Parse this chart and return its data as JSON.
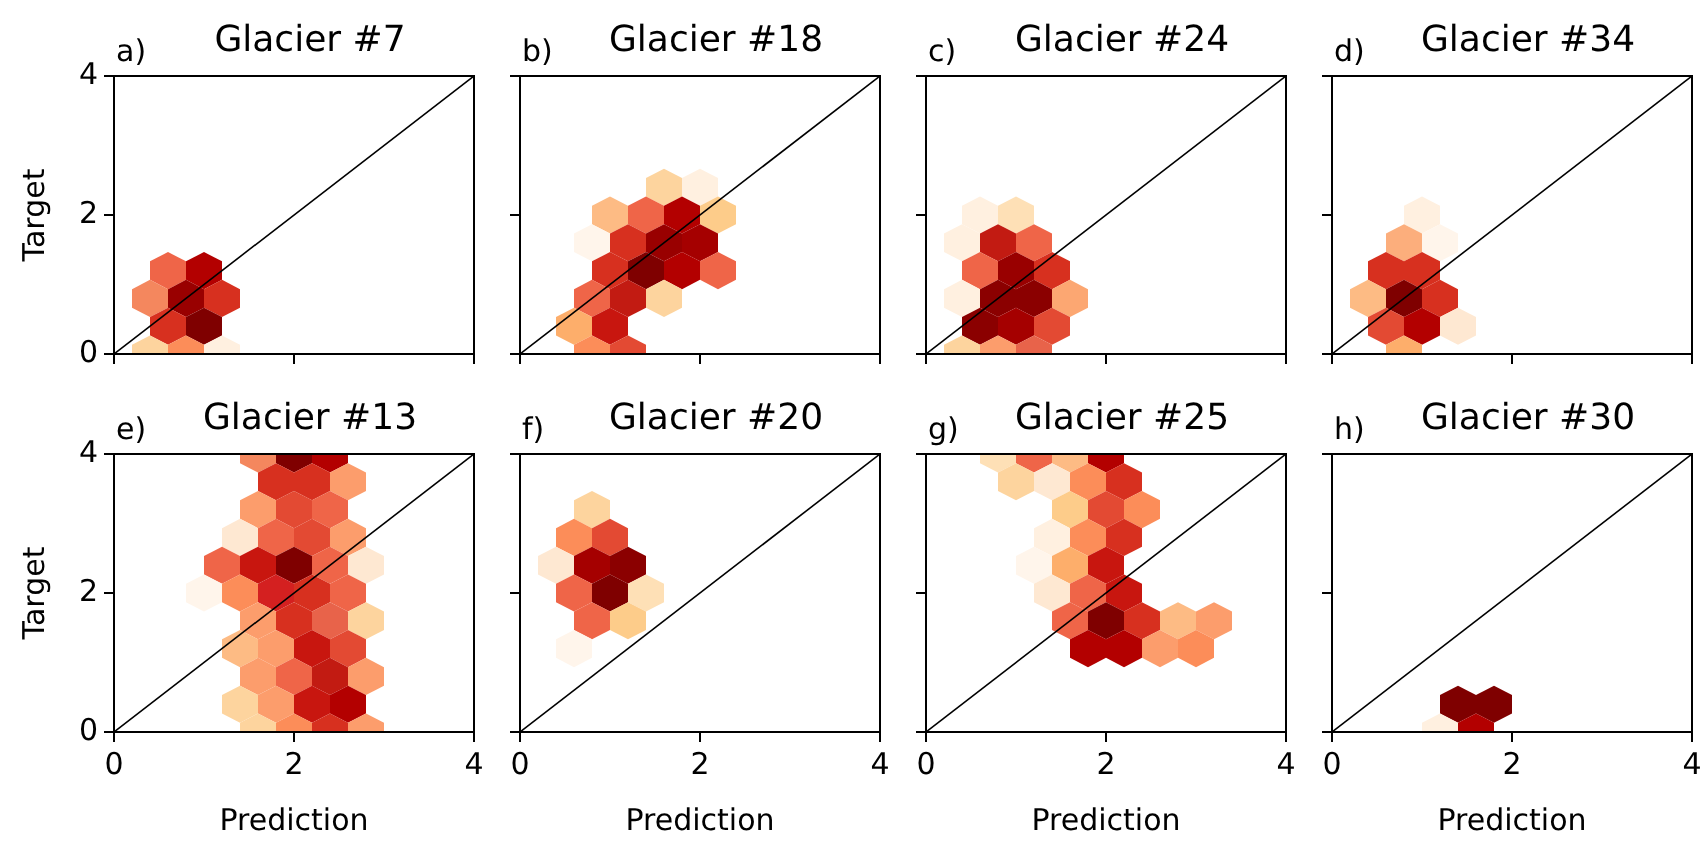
{
  "chart_data": [
    {
      "type": "scatter",
      "title": "Glacier #7",
      "annotations": [
        "a)"
      ],
      "ylabel": "Target",
      "xlim": [
        0,
        4
      ],
      "ylim": [
        0,
        4
      ],
      "xticks": [
        0,
        2,
        4
      ],
      "yticks": [
        0,
        2,
        4
      ],
      "tick_labels": "y",
      "series": [
        {
          "x": [
            0.6,
            1.0,
            0.4,
            0.8,
            1.2,
            0.6,
            1.0,
            0.4,
            0.8,
            1.2
          ],
          "values": [
            1.2,
            1.2,
            0.8,
            0.8,
            0.8,
            0.4,
            0.4,
            0,
            0,
            0
          ],
          "colors": [
            "#ef6548",
            "#b30000",
            "#f4875e",
            "#990000",
            "#d7301f",
            "#d7301f",
            "#7f0000",
            "#fdd49e",
            "#fc8d59",
            "#fff0e0"
          ]
        },
        {
          "type": "line",
          "x": [
            0,
            4
          ],
          "values": [
            0,
            4
          ],
          "color": "#000000"
        }
      ]
    },
    {
      "type": "scatter",
      "title": "Glacier #18",
      "annotations": [
        "b)"
      ],
      "xlim": [
        0,
        4
      ],
      "ylim": [
        0,
        4
      ],
      "xticks": [
        0,
        2,
        4
      ],
      "yticks": [
        0,
        2,
        4
      ],
      "tick_labels": false,
      "series": [
        {
          "x": [
            1.6,
            2.0,
            1.0,
            1.4,
            1.8,
            2.2,
            0.8,
            1.2,
            1.6,
            2.0,
            1.0,
            1.4,
            1.8,
            2.2,
            0.8,
            1.2,
            1.6,
            0.6,
            1.0,
            0.8,
            1.2
          ],
          "values": [
            2.4,
            2.4,
            2.0,
            2.0,
            2.0,
            2.0,
            1.6,
            1.6,
            1.6,
            1.6,
            1.2,
            1.2,
            1.2,
            1.2,
            0.8,
            0.8,
            0.8,
            0.4,
            0.4,
            0,
            0
          ],
          "colors": [
            "#fdd49e",
            "#fff0e0",
            "#fdbb84",
            "#ef6548",
            "#b30000",
            "#fdcc8a",
            "#fff5eb",
            "#d7301f",
            "#990000",
            "#a50000",
            "#d7301f",
            "#7f0000",
            "#b30000",
            "#ef6548",
            "#ef6548",
            "#c21b12",
            "#fdd49e",
            "#fdae6b",
            "#c8160f",
            "#fc8d59",
            "#e34a33"
          ]
        },
        {
          "type": "line",
          "x": [
            0,
            4
          ],
          "values": [
            0,
            4
          ],
          "color": "#000000"
        }
      ]
    },
    {
      "type": "scatter",
      "title": "Glacier #24",
      "annotations": [
        "c)"
      ],
      "xlim": [
        0,
        4
      ],
      "ylim": [
        0,
        4
      ],
      "xticks": [
        0,
        2,
        4
      ],
      "yticks": [
        0,
        2,
        4
      ],
      "tick_labels": false,
      "series": [
        {
          "x": [
            0.6,
            1.0,
            0.4,
            0.8,
            1.2,
            0.6,
            1.0,
            1.4,
            0.4,
            0.8,
            1.2,
            1.6,
            0.6,
            1.0,
            1.4,
            0.4,
            0.8,
            1.2
          ],
          "values": [
            2.0,
            2.0,
            1.6,
            1.6,
            1.6,
            1.2,
            1.2,
            1.2,
            0.8,
            0.8,
            0.8,
            0.8,
            0.4,
            0.4,
            0.4,
            0,
            0,
            0
          ],
          "colors": [
            "#fff0e0",
            "#fee0b6",
            "#fff0e0",
            "#c21b12",
            "#ef6548",
            "#ef6548",
            "#990000",
            "#d7301f",
            "#fff0e0",
            "#8b0000",
            "#8b0000",
            "#fca772",
            "#8b0000",
            "#a50000",
            "#e34a33",
            "#fdd49e",
            "#fc9d6c",
            "#e8634a"
          ]
        },
        {
          "type": "line",
          "x": [
            0,
            4
          ],
          "values": [
            0,
            4
          ],
          "color": "#000000"
        }
      ]
    },
    {
      "type": "scatter",
      "title": "Glacier #34",
      "annotations": [
        "d)"
      ],
      "xlim": [
        0,
        4
      ],
      "ylim": [
        0,
        4
      ],
      "xticks": [
        0,
        2,
        4
      ],
      "yticks": [
        0,
        2,
        4
      ],
      "tick_labels": false,
      "series": [
        {
          "x": [
            1.0,
            0.8,
            1.2,
            0.6,
            1.0,
            0.4,
            0.8,
            1.2,
            0.6,
            1.0,
            1.4,
            0.8
          ],
          "values": [
            2.0,
            1.6,
            1.6,
            1.2,
            1.2,
            0.8,
            0.8,
            0.8,
            0.4,
            0.4,
            0.4,
            0
          ],
          "colors": [
            "#fff0e0",
            "#fcae7c",
            "#fff5eb",
            "#d7301f",
            "#d7301f",
            "#fdbb84",
            "#7f0000",
            "#d7301f",
            "#e34a33",
            "#b30000",
            "#fee8d2",
            "#fdae6b"
          ]
        },
        {
          "type": "line",
          "x": [
            0,
            4
          ],
          "values": [
            0,
            4
          ],
          "color": "#000000"
        }
      ]
    },
    {
      "type": "scatter",
      "title": "Glacier #13",
      "annotations": [
        "e)"
      ],
      "xlabel": "Prediction",
      "ylabel": "Target",
      "xlim": [
        0,
        4
      ],
      "ylim": [
        0,
        4
      ],
      "xticks": [
        0,
        2,
        4
      ],
      "yticks": [
        0,
        2,
        4
      ],
      "series": [
        {
          "x": [
            1.6,
            2.0,
            2.4,
            1.8,
            2.2,
            2.6,
            1.6,
            2.0,
            2.4,
            1.4,
            1.8,
            2.2,
            2.6,
            1.2,
            1.6,
            2.0,
            2.4,
            2.8,
            1.0,
            1.4,
            1.8,
            2.2,
            2.6,
            1.6,
            2.0,
            2.4,
            2.8,
            1.4,
            1.8,
            2.2,
            2.6,
            1.6,
            2.0,
            2.4,
            2.8,
            1.4,
            1.8,
            2.2,
            2.6,
            1.6,
            2.0,
            2.4,
            2.8
          ],
          "values": [
            4.0,
            4.0,
            4.0,
            3.6,
            3.6,
            3.6,
            3.2,
            3.2,
            3.2,
            2.8,
            2.8,
            2.8,
            2.8,
            2.4,
            2.4,
            2.4,
            2.4,
            2.4,
            2.0,
            2.0,
            2.0,
            2.0,
            2.0,
            1.6,
            1.6,
            1.6,
            1.6,
            1.2,
            1.2,
            1.2,
            1.2,
            0.8,
            0.8,
            0.8,
            0.8,
            0.4,
            0.4,
            0.4,
            0.4,
            0,
            0,
            0,
            0
          ],
          "colors": [
            "#f4875e",
            "#7f0000",
            "#b30000",
            "#d7301f",
            "#d7301f",
            "#fc9d6c",
            "#fc9d6c",
            "#e34a33",
            "#ef6548",
            "#fee8d2",
            "#ef6548",
            "#e34a33",
            "#fc9d6c",
            "#ef6548",
            "#c8160f",
            "#7f0000",
            "#ef6548",
            "#fee8d2",
            "#fff5eb",
            "#fc8d59",
            "#d42020",
            "#d7301f",
            "#ef6548",
            "#fc9d6c",
            "#d7301f",
            "#e8634a",
            "#fdd49e",
            "#fdbb84",
            "#fc9d6c",
            "#c8160f",
            "#e34a33",
            "#fc9d6c",
            "#ef6548",
            "#c21b12",
            "#fc9d6c",
            "#fdd49e",
            "#fc9d6c",
            "#c8160f",
            "#b30000",
            "#fdd49e",
            "#fc8d59",
            "#d7301f",
            "#fc9d6c"
          ]
        },
        {
          "type": "line",
          "x": [
            0,
            4
          ],
          "values": [
            0,
            4
          ],
          "color": "#000000"
        }
      ]
    },
    {
      "type": "scatter",
      "title": "Glacier #20",
      "annotations": [
        "f)"
      ],
      "xlabel": "Prediction",
      "xlim": [
        0,
        4
      ],
      "ylim": [
        0,
        4
      ],
      "xticks": [
        0,
        2,
        4
      ],
      "yticks": [
        0,
        2,
        4
      ],
      "tick_labels": "x",
      "series": [
        {
          "x": [
            0.8,
            0.6,
            1.0,
            0.4,
            0.8,
            1.2,
            0.6,
            1.0,
            1.4,
            0.8,
            1.2,
            0.6
          ],
          "values": [
            3.2,
            2.8,
            2.8,
            2.4,
            2.4,
            2.4,
            2.0,
            2.0,
            2.0,
            1.6,
            1.6,
            1.2
          ],
          "colors": [
            "#fdd49e",
            "#fc8d59",
            "#e34a33",
            "#fee8d2",
            "#a50000",
            "#8b0000",
            "#ef6548",
            "#7f0000",
            "#fee0b6",
            "#ef6548",
            "#fdcc8a",
            "#fff5eb"
          ]
        },
        {
          "type": "line",
          "x": [
            0,
            4
          ],
          "values": [
            0,
            4
          ],
          "color": "#000000"
        }
      ]
    },
    {
      "type": "scatter",
      "title": "Glacier #25",
      "annotations": [
        "g)"
      ],
      "xlabel": "Prediction",
      "xlim": [
        0,
        4
      ],
      "ylim": [
        0,
        4
      ],
      "xticks": [
        0,
        2,
        4
      ],
      "yticks": [
        0,
        2,
        4
      ],
      "tick_labels": "x",
      "series": [
        {
          "x": [
            0.8,
            1.2,
            1.6,
            2.0,
            1.0,
            1.4,
            1.8,
            2.2,
            1.6,
            2.0,
            2.4,
            1.4,
            1.8,
            2.2,
            1.2,
            1.6,
            2.0,
            1.4,
            1.8,
            2.2,
            1.6,
            2.0,
            2.4,
            2.8,
            3.2,
            1.8,
            2.2,
            2.6,
            3.0
          ],
          "values": [
            4.0,
            4.0,
            4.0,
            4.0,
            3.6,
            3.6,
            3.6,
            3.6,
            3.2,
            3.2,
            3.2,
            2.8,
            2.8,
            2.8,
            2.4,
            2.4,
            2.4,
            2.0,
            2.0,
            2.0,
            1.6,
            1.6,
            1.6,
            1.6,
            1.6,
            1.2,
            1.2,
            1.2,
            1.2
          ],
          "colors": [
            "#fee0b6",
            "#ef6548",
            "#fdbb84",
            "#b30000",
            "#fdd49e",
            "#fee8d2",
            "#fc8d59",
            "#d7301f",
            "#fdcc8a",
            "#e34a33",
            "#fc8d59",
            "#fff0e0",
            "#fc8d59",
            "#d7301f",
            "#fff5eb",
            "#fdae6b",
            "#c8160f",
            "#fee8d2",
            "#ef6548",
            "#c8160f",
            "#ef6548",
            "#7f0000",
            "#d7301f",
            "#fdbb84",
            "#fc9d6c",
            "#b30000",
            "#b30000",
            "#fc9d6c",
            "#fc8d59"
          ]
        },
        {
          "type": "line",
          "x": [
            0,
            4
          ],
          "values": [
            0,
            4
          ],
          "color": "#000000"
        }
      ]
    },
    {
      "type": "scatter",
      "title": "Glacier #30",
      "annotations": [
        "h)"
      ],
      "xlabel": "Prediction",
      "xlim": [
        0,
        4
      ],
      "ylim": [
        0,
        4
      ],
      "xticks": [
        0,
        2,
        4
      ],
      "yticks": [
        0,
        2,
        4
      ],
      "tick_labels": "x",
      "series": [
        {
          "x": [
            1.4,
            1.8,
            1.2,
            1.6
          ],
          "values": [
            0.4,
            0.4,
            0,
            0
          ],
          "colors": [
            "#7f0000",
            "#7f0000",
            "#fff0e0",
            "#b30000"
          ]
        },
        {
          "type": "line",
          "x": [
            0,
            4
          ],
          "values": [
            0,
            4
          ],
          "color": "#000000"
        }
      ]
    }
  ]
}
